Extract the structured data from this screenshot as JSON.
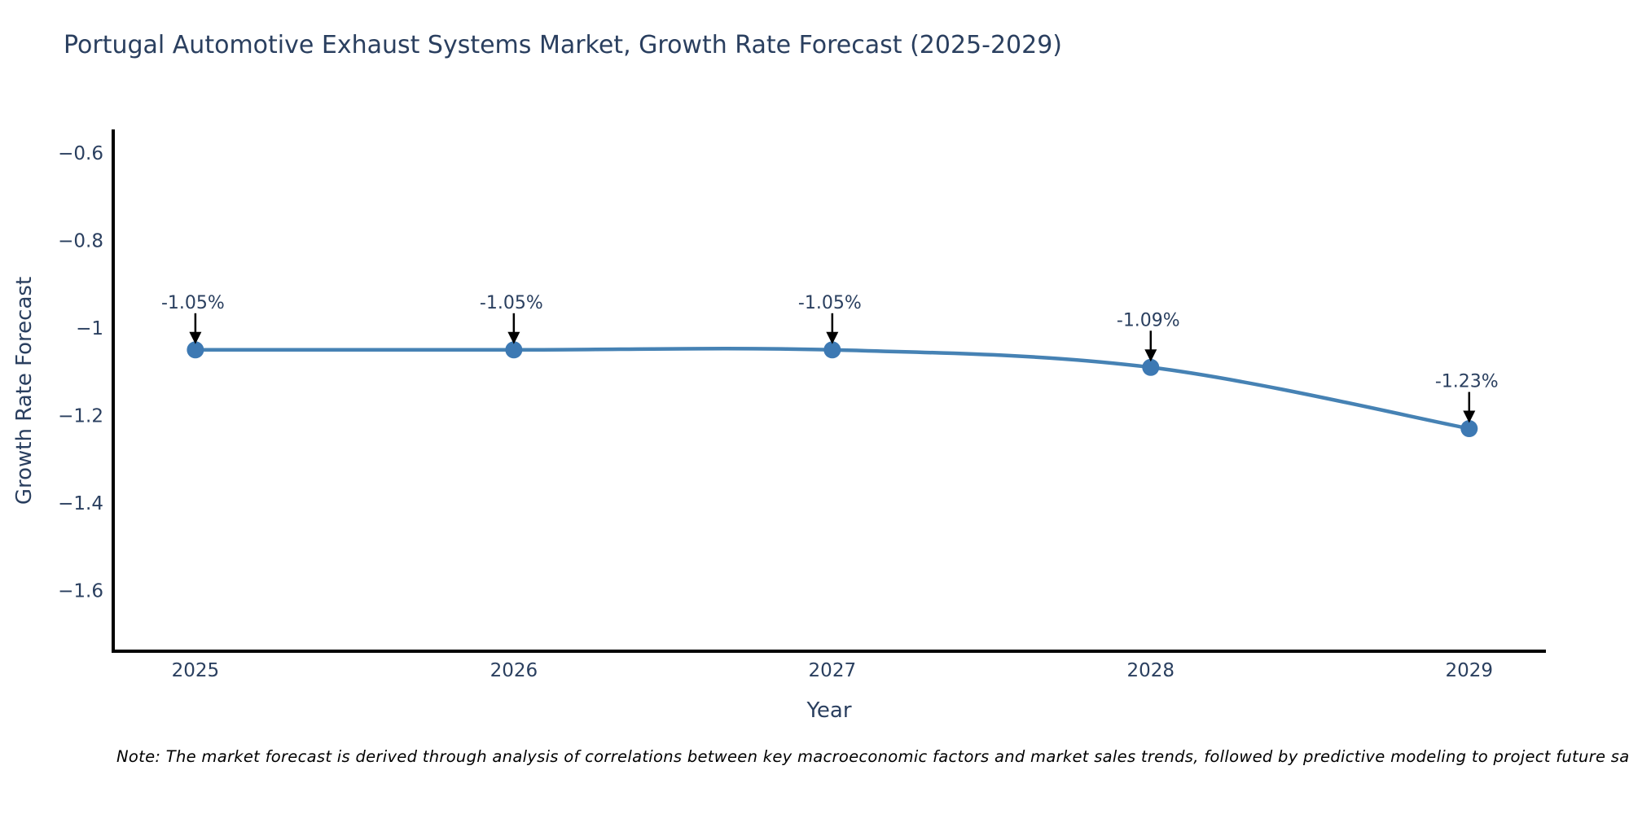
{
  "chart_data": {
    "type": "line",
    "title": "Portugal Automotive Exhaust Systems Market, Growth Rate Forecast (2025-2029)",
    "xlabel": "Year",
    "ylabel": "Growth Rate Forecast",
    "x": [
      2025,
      2026,
      2027,
      2028,
      2029
    ],
    "values": [
      -1.05,
      -1.05,
      -1.05,
      -1.09,
      -1.23
    ],
    "point_labels": [
      "-1.05%",
      "-1.05%",
      "-1.05%",
      "-1.09%",
      "-1.23%"
    ],
    "x_tick_labels": [
      "2025",
      "2026",
      "2027",
      "2028",
      "2029"
    ],
    "y_ticks": [
      -0.6,
      -0.8,
      -1.0,
      -1.2,
      -1.4,
      -1.6
    ],
    "y_tick_labels": [
      "−0.6",
      "−0.8",
      "−1",
      "−1.2",
      "−1.4",
      "−1.6"
    ],
    "xlim": [
      2024.742,
      2029.241
    ],
    "ylim": [
      -1.739,
      -0.546
    ],
    "grid": false,
    "legend": "none",
    "colors": {
      "line": "#4682b4",
      "marker": "#3d79b3",
      "axis": "#000000",
      "tick_text": "#2a3f5f",
      "annotation_text": "#2a3f5f",
      "arrow": "#000000",
      "background": "#ffffff"
    }
  },
  "note": {
    "text": "Note: The market forecast is derived through analysis of correlations between key macroeconomic factors and market sales trends, followed by predictive modeling to project future sales."
  }
}
